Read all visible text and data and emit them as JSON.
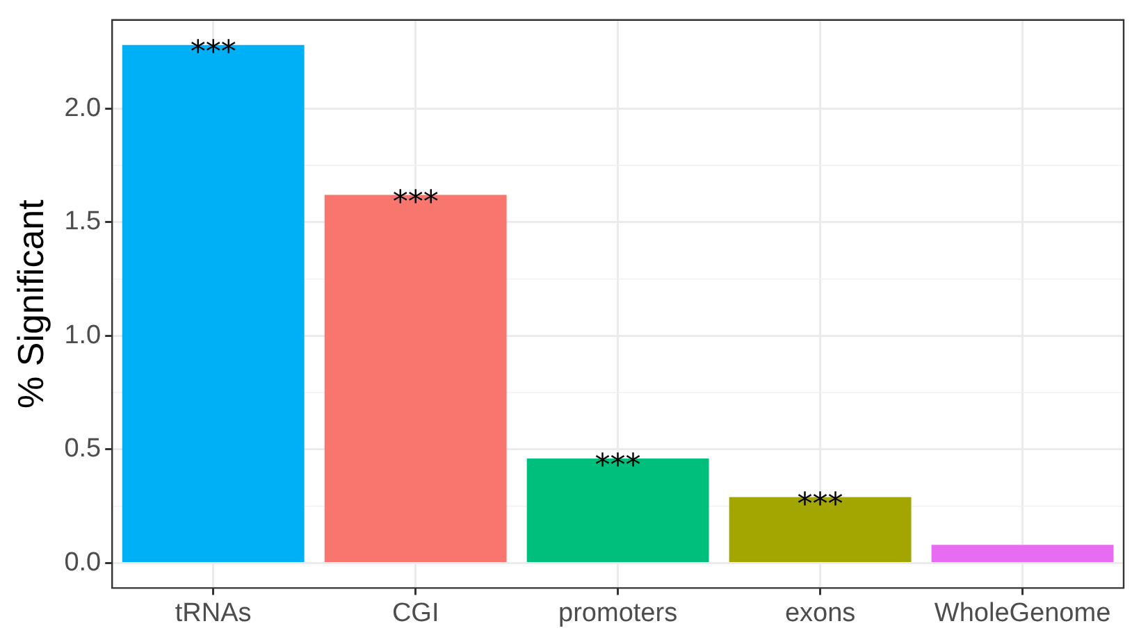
{
  "chart_data": {
    "type": "bar",
    "ylabel": "% Significant",
    "categories": [
      "tRNAs",
      "CGI",
      "promoters",
      "exons",
      "WholeGenome"
    ],
    "values": [
      2.28,
      1.62,
      0.46,
      0.29,
      0.08
    ],
    "colors": [
      "#00b0f6",
      "#f8766d",
      "#00bf7d",
      "#a3a500",
      "#e76bf3"
    ],
    "ylim": [
      -0.11,
      2.39
    ],
    "yticks": [
      {
        "value": 0,
        "label": "0.0"
      },
      {
        "value": 0.5,
        "label": "0.5"
      },
      {
        "value": 1,
        "label": "1.0"
      },
      {
        "value": 1.5,
        "label": "1.5"
      },
      {
        "value": 2,
        "label": "2.0"
      }
    ],
    "grid": true,
    "legend": false,
    "annotations": [
      {
        "text": "***",
        "x": "tRNAs",
        "y": 2.28
      },
      {
        "text": "***",
        "x": "CGI",
        "y": 1.62
      },
      {
        "text": "***",
        "x": "promoters",
        "y": 0.46
      },
      {
        "text": "***",
        "x": "exons",
        "y": 0.29
      }
    ]
  }
}
